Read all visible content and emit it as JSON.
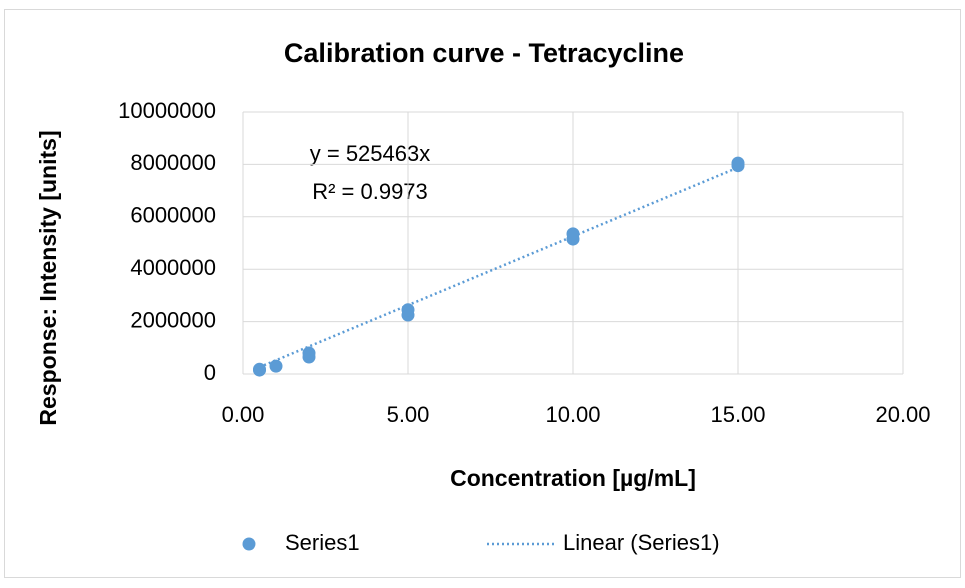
{
  "chart_data": {
    "type": "scatter",
    "title": "Calibration curve - Tetracycline",
    "x_label": "Concentration [µg/mL]",
    "y_label": "Response: Intensity [units]",
    "series": [
      {
        "name": "Series1",
        "color": "#5b9bd5",
        "x": [
          0.5,
          0.5,
          1,
          2,
          2,
          5,
          5,
          10,
          10,
          15,
          15
        ],
        "values": [
          150000,
          180000,
          300000,
          650000,
          800000,
          2250000,
          2450000,
          5150000,
          5350000,
          7950000,
          8050000
        ]
      }
    ],
    "trendline": {
      "name": "Linear (Series1)",
      "slope": 525463,
      "color": "#5b9bd5",
      "equation": "y = 525463x",
      "r_squared": "R² = 0.9973"
    },
    "xlim": [
      0,
      20
    ],
    "xticks": [
      {
        "value": 0,
        "label": "0.00"
      },
      {
        "value": 5,
        "label": "5.00"
      },
      {
        "value": 10,
        "label": "10.00"
      },
      {
        "value": 15,
        "label": "15.00"
      },
      {
        "value": 20,
        "label": "20.00"
      }
    ],
    "ylim": [
      0,
      10000000
    ],
    "yticks": [
      0,
      2000000,
      4000000,
      6000000,
      8000000,
      10000000
    ],
    "grid": true,
    "legend": "bottom"
  }
}
